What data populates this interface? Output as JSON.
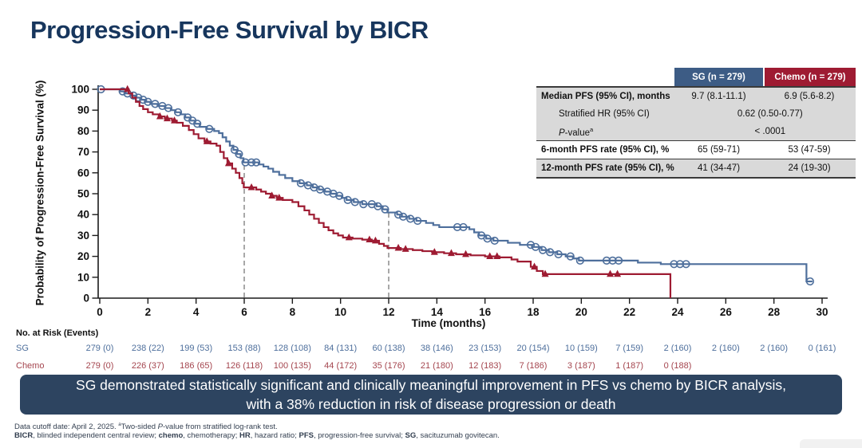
{
  "slide": {
    "title": "Progression-Free Survival by BICR",
    "banner": {
      "line1": "SG demonstrated statistically significant and clinically meaningful improvement in PFS vs chemo by BICR analysis,",
      "line2": "with a 38% reduction in risk of disease progression or death"
    },
    "footnote1_segments": [
      {
        "t": "Data cutoff date: April 2, 2025. "
      },
      {
        "t": "a",
        "sup": true
      },
      {
        "t": "Two-sided "
      },
      {
        "t": "P",
        "italic": true
      },
      {
        "t": "-value from stratified log-rank test."
      }
    ],
    "footnote2_segments": [
      {
        "t": "BICR",
        "bold": true
      },
      {
        "t": ", blinded independent central review; "
      },
      {
        "t": "chemo",
        "bold": true
      },
      {
        "t": ", chemotherapy; "
      },
      {
        "t": "HR",
        "bold": true
      },
      {
        "t": ", hazard ratio; "
      },
      {
        "t": "PFS",
        "bold": true
      },
      {
        "t": ", progression-free survival; "
      },
      {
        "t": "SG",
        "bold": true
      },
      {
        "t": ", sacituzumab govitecan."
      }
    ]
  },
  "colors": {
    "title": "#17365d",
    "sg_header": "#3d5c85",
    "chemo_header": "#9e1b32",
    "banner_bg": "#2d4460",
    "footer_text": "#333f50",
    "dashed": "#8c8c8c"
  },
  "stats_table": {
    "col_sg": "SG (n = 279)",
    "col_chemo": "Chemo (n = 279)",
    "rows": {
      "median": {
        "label": "Median PFS (95% CI), months",
        "sg": "9.7 (8.1-11.1)",
        "chemo": "6.9 (5.6-8.2)"
      },
      "hr": {
        "label": "Stratified HR (95% CI)",
        "value": "0.62 (0.50-0.77)"
      },
      "pvalue": {
        "label_segments": [
          {
            "t": "P",
            "italic": true
          },
          {
            "t": "-value"
          },
          {
            "t": "a",
            "sup": true
          }
        ],
        "value": "< .0001"
      },
      "pfs6": {
        "label": "6-month PFS rate (95% CI), %",
        "sg": "65 (59-71)",
        "chemo": "53 (47-59)"
      },
      "pfs12": {
        "label": "12-month PFS rate (95% CI), %",
        "sg": "41 (34-47)",
        "chemo": "24 (19-30)"
      }
    }
  },
  "chart_data": {
    "type": "line",
    "subtype": "kaplan-meier-step",
    "xlabel": "Time (months)",
    "ylabel": "Probability of Progression-Free Survival (%)",
    "xlim": [
      0,
      30
    ],
    "ylim": [
      0,
      100
    ],
    "xtick_step": 2,
    "ytick_step": 10,
    "grid": false,
    "reference_lines": [
      {
        "x": 6,
        "top": 65
      },
      {
        "x": 12,
        "top": 41
      }
    ],
    "series": [
      {
        "name": "SG",
        "color": "#4e6f9c",
        "marker": "circle",
        "end": 29.6,
        "steps": [
          [
            0,
            100
          ],
          [
            0.85,
            99
          ],
          [
            1.05,
            98
          ],
          [
            1.3,
            97
          ],
          [
            1.5,
            96
          ],
          [
            1.7,
            95
          ],
          [
            1.9,
            94
          ],
          [
            2.1,
            93
          ],
          [
            2.4,
            92
          ],
          [
            2.7,
            91
          ],
          [
            2.95,
            90
          ],
          [
            3.15,
            89
          ],
          [
            3.35,
            88
          ],
          [
            3.55,
            86.5
          ],
          [
            3.75,
            85
          ],
          [
            3.95,
            83.5
          ],
          [
            4.15,
            82
          ],
          [
            4.45,
            81
          ],
          [
            4.75,
            80
          ],
          [
            4.95,
            79
          ],
          [
            5.1,
            77
          ],
          [
            5.25,
            75
          ],
          [
            5.4,
            73
          ],
          [
            5.55,
            71
          ],
          [
            5.7,
            69
          ],
          [
            5.85,
            67
          ],
          [
            5.97,
            65
          ],
          [
            6.6,
            64
          ],
          [
            6.8,
            63
          ],
          [
            7.0,
            62
          ],
          [
            7.2,
            60.5
          ],
          [
            7.45,
            59
          ],
          [
            7.7,
            57.5
          ],
          [
            8.0,
            56
          ],
          [
            8.3,
            55
          ],
          [
            8.6,
            54
          ],
          [
            8.85,
            53
          ],
          [
            9.1,
            52
          ],
          [
            9.35,
            51
          ],
          [
            9.6,
            50
          ],
          [
            9.85,
            49
          ],
          [
            10.05,
            48
          ],
          [
            10.25,
            47
          ],
          [
            10.55,
            46
          ],
          [
            10.9,
            45
          ],
          [
            11.5,
            44
          ],
          [
            11.75,
            42.5
          ],
          [
            11.95,
            41
          ],
          [
            12.35,
            40
          ],
          [
            12.55,
            39
          ],
          [
            12.85,
            38
          ],
          [
            13.15,
            37
          ],
          [
            13.55,
            36
          ],
          [
            13.85,
            35
          ],
          [
            14.1,
            34
          ],
          [
            15.35,
            33
          ],
          [
            15.55,
            31.5
          ],
          [
            15.75,
            30
          ],
          [
            16.05,
            28.5
          ],
          [
            16.35,
            27.5
          ],
          [
            16.95,
            26.5
          ],
          [
            17.45,
            25.5
          ],
          [
            17.95,
            24.5
          ],
          [
            18.35,
            23
          ],
          [
            18.65,
            22
          ],
          [
            19.0,
            21
          ],
          [
            19.35,
            20
          ],
          [
            19.65,
            19
          ],
          [
            19.9,
            18
          ],
          [
            22.35,
            17
          ],
          [
            23.3,
            16.3
          ],
          [
            29.35,
            8
          ]
        ],
        "censors": [
          0.05,
          0.95,
          1.15,
          1.4,
          1.6,
          1.8,
          2.0,
          2.3,
          2.6,
          2.85,
          3.25,
          3.65,
          3.85,
          4.05,
          4.55,
          5.6,
          5.78,
          6.05,
          6.3,
          6.5,
          8.35,
          8.65,
          8.9,
          9.15,
          9.45,
          9.7,
          9.95,
          10.3,
          10.6,
          10.95,
          11.3,
          11.55,
          11.85,
          12.4,
          12.6,
          12.9,
          13.2,
          14.85,
          15.1,
          15.85,
          16.1,
          16.4,
          17.9,
          18.1,
          18.4,
          18.7,
          19.05,
          19.55,
          19.95,
          21.05,
          21.3,
          21.55,
          23.85,
          24.1,
          24.35,
          29.5
        ]
      },
      {
        "name": "Chemo",
        "color": "#9e1b32",
        "marker": "triangle",
        "end": 23.7,
        "steps": [
          [
            0,
            100
          ],
          [
            1.2,
            98
          ],
          [
            1.35,
            96
          ],
          [
            1.5,
            94
          ],
          [
            1.65,
            92
          ],
          [
            1.8,
            90.5
          ],
          [
            2.0,
            89
          ],
          [
            2.2,
            88
          ],
          [
            2.45,
            87
          ],
          [
            2.7,
            86
          ],
          [
            3.0,
            85
          ],
          [
            3.2,
            84
          ],
          [
            3.45,
            82.5
          ],
          [
            3.7,
            80.5
          ],
          [
            3.9,
            78.5
          ],
          [
            4.1,
            76.5
          ],
          [
            4.35,
            75
          ],
          [
            4.6,
            74
          ],
          [
            4.85,
            73
          ],
          [
            5.0,
            70
          ],
          [
            5.15,
            67
          ],
          [
            5.3,
            64.5
          ],
          [
            5.5,
            62
          ],
          [
            5.65,
            60
          ],
          [
            5.8,
            57.5
          ],
          [
            5.92,
            55
          ],
          [
            5.98,
            53
          ],
          [
            6.5,
            52
          ],
          [
            6.7,
            51
          ],
          [
            6.9,
            50
          ],
          [
            7.1,
            49
          ],
          [
            7.35,
            48
          ],
          [
            7.6,
            47
          ],
          [
            8.0,
            46
          ],
          [
            8.25,
            44
          ],
          [
            8.5,
            42
          ],
          [
            8.7,
            40
          ],
          [
            8.9,
            38
          ],
          [
            9.1,
            36
          ],
          [
            9.3,
            34
          ],
          [
            9.5,
            32.5
          ],
          [
            9.7,
            31
          ],
          [
            9.9,
            30
          ],
          [
            10.1,
            29
          ],
          [
            10.5,
            28.5
          ],
          [
            10.9,
            28
          ],
          [
            11.3,
            27.5
          ],
          [
            11.6,
            26
          ],
          [
            11.8,
            25
          ],
          [
            11.95,
            24
          ],
          [
            12.5,
            23.5
          ],
          [
            13.0,
            23
          ],
          [
            13.4,
            22.5
          ],
          [
            13.8,
            22
          ],
          [
            14.3,
            21.5
          ],
          [
            14.8,
            21
          ],
          [
            15.4,
            20.5
          ],
          [
            16.0,
            20
          ],
          [
            16.6,
            19.5
          ],
          [
            17.1,
            18.5
          ],
          [
            17.35,
            17.5
          ],
          [
            17.9,
            15
          ],
          [
            18.15,
            13
          ],
          [
            18.4,
            11.5
          ],
          [
            23.7,
            0
          ]
        ],
        "censors": [
          1.15,
          2.5,
          2.8,
          3.1,
          4.45,
          5.35,
          6.3,
          7.15,
          7.45,
          10.35,
          11.2,
          11.45,
          12.4,
          12.7,
          13.9,
          14.6,
          15.2,
          16.2,
          16.5,
          18.05,
          18.5,
          21.2,
          21.5
        ]
      }
    ],
    "risk_table": {
      "label": "No. at Risk (Events)",
      "times": [
        0,
        2,
        4,
        6,
        8,
        10,
        12,
        14,
        16,
        18,
        20,
        22,
        24,
        26,
        28,
        30
      ],
      "rows": [
        {
          "name": "SG",
          "color": "#4e6f9c",
          "values": [
            "279 (0)",
            "238 (22)",
            "199 (53)",
            "153 (88)",
            "128 (108)",
            "84 (131)",
            "60 (138)",
            "38 (146)",
            "23 (153)",
            "20 (154)",
            "10 (159)",
            "7 (159)",
            "2 (160)",
            "2 (160)",
            "2 (160)",
            "0 (161)"
          ]
        },
        {
          "name": "Chemo",
          "color": "#a4454e",
          "values": [
            "279 (0)",
            "226 (37)",
            "186 (65)",
            "126 (118)",
            "100 (135)",
            "44 (172)",
            "35 (176)",
            "21 (180)",
            "12 (183)",
            "7 (186)",
            "3 (187)",
            "1 (187)",
            "0 (188)",
            "",
            "",
            ""
          ]
        }
      ]
    }
  }
}
